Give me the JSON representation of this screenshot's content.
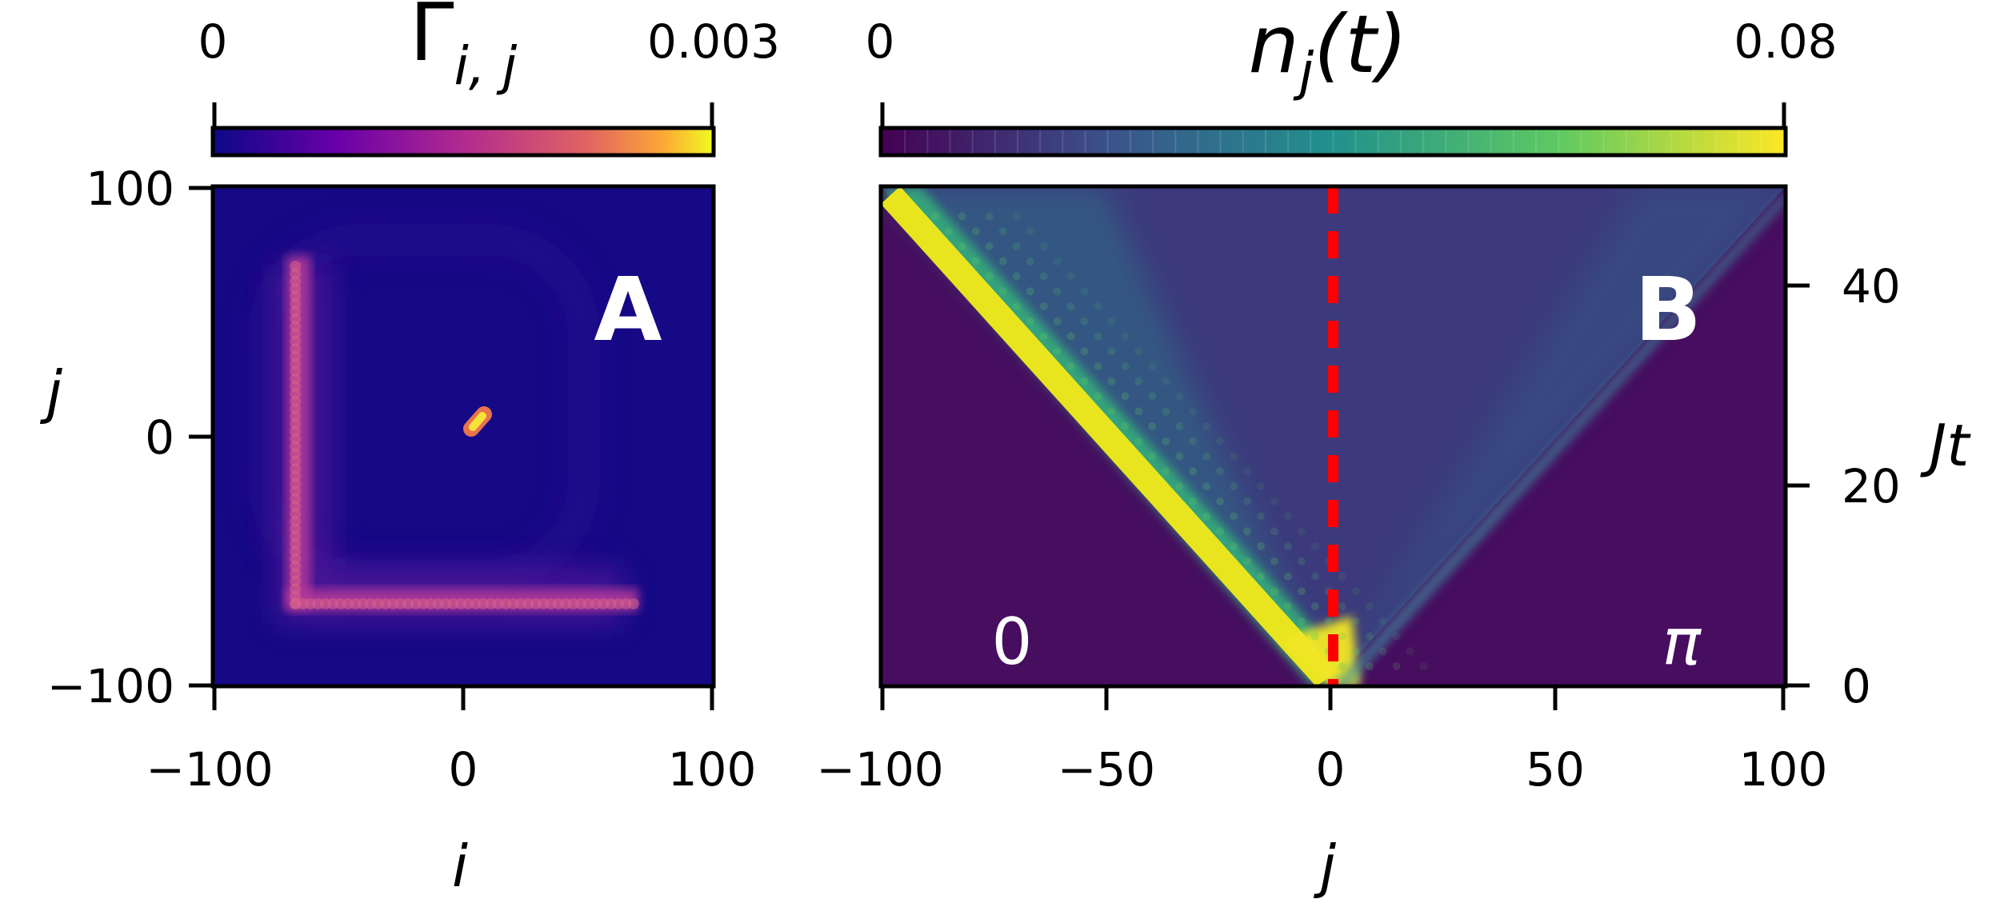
{
  "chart_data": [
    {
      "type": "heatmap",
      "panel_label": "A",
      "title": "Γi,j",
      "title_main": "Γ",
      "title_sub": "i, j",
      "xlabel": "i",
      "ylabel": "j",
      "xlim": [
        -100,
        100
      ],
      "ylim": [
        -100,
        100
      ],
      "x_ticks": [
        "−100",
        "0",
        "100"
      ],
      "y_ticks": [
        "100",
        "0",
        "−100"
      ],
      "colorbar": {
        "colormap": "plasma",
        "min_label": "0",
        "max_label": "0.003",
        "min": 0,
        "max": 0.003
      },
      "features": [
        {
          "name": "vertical band",
          "i": -67,
          "j_range": [
            -67,
            70
          ],
          "value": 0.0012
        },
        {
          "name": "horizontal band",
          "j": -67,
          "i_range": [
            -67,
            70
          ],
          "value": 0.0012
        },
        {
          "name": "diagonal peak",
          "i_range": [
            4,
            9
          ],
          "j_range": [
            4,
            9
          ],
          "value": 0.003
        },
        {
          "name": "background",
          "value": 0.0
        }
      ]
    },
    {
      "type": "heatmap",
      "panel_label": "B",
      "title": "nj(t)",
      "title_main": "n",
      "title_sub": "j",
      "title_tail": "(t)",
      "xlabel": "j",
      "ylabel": "Jt",
      "xlim": [
        -100,
        100
      ],
      "ylim": [
        0,
        50
      ],
      "x_ticks": [
        "−100",
        "−50",
        "0",
        "50",
        "100"
      ],
      "y_ticks": [
        "0",
        "20",
        "40"
      ],
      "colorbar": {
        "colormap": "viridis",
        "min_label": "0",
        "max_label": "0.08",
        "min": 0,
        "max": 0.08
      },
      "region_labels": [
        "0",
        "π"
      ],
      "boundary_x": 0,
      "boundary_color": "#ff0000",
      "features": [
        {
          "name": "left light cone edge",
          "from": [
            0,
            0
          ],
          "to": [
            -100,
            50
          ],
          "value": 0.08
        },
        {
          "name": "right light cone edge",
          "from": [
            0,
            0
          ],
          "to": [
            100,
            50
          ],
          "value": 0.02
        },
        {
          "name": "outside cone",
          "value": 0.0
        }
      ]
    }
  ]
}
